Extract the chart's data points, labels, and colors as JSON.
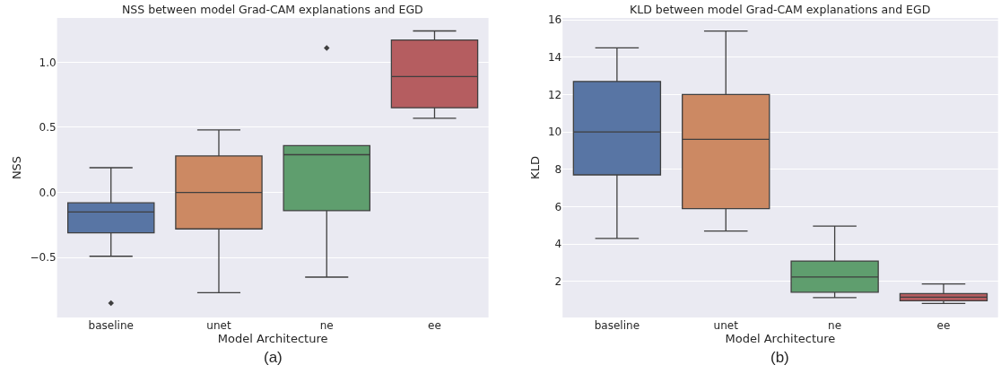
{
  "chart_data": [
    {
      "type": "box",
      "title": "NSS between model Grad-CAM explanations and EGD",
      "xlabel": "Model Architecture",
      "ylabel": "NSS",
      "categories": [
        "baseline",
        "unet",
        "ne",
        "ee"
      ],
      "colors": [
        "#5875a4",
        "#cc8963",
        "#5f9e6e",
        "#b55d60"
      ],
      "ylim": [
        -0.96,
        1.34
      ],
      "yticks": [
        {
          "value": -0.5,
          "label": "−0.5"
        },
        {
          "value": 0,
          "label": "0.0"
        },
        0.5,
        {
          "value": 1,
          "label": "1.0"
        }
      ],
      "grid": "y",
      "annotations": [
        "(a)"
      ],
      "boxes": [
        {
          "low": -0.49,
          "q1": -0.31,
          "median": -0.15,
          "q3": -0.08,
          "high": 0.19,
          "outliers": [
            -0.85
          ]
        },
        {
          "low": -0.77,
          "q1": -0.28,
          "median": 0.0,
          "q3": 0.28,
          "high": 0.48
        },
        {
          "low": -0.65,
          "q1": -0.14,
          "median": 0.29,
          "q3": 0.36,
          "high": 0.36,
          "outliers": [
            1.11
          ]
        },
        {
          "low": 0.57,
          "q1": 0.65,
          "median": 0.89,
          "q3": 1.17,
          "high": 1.24
        }
      ]
    },
    {
      "type": "box",
      "title": "KLD between model Grad-CAM explanations and EGD",
      "xlabel": "Model Architecture",
      "ylabel": "KLD",
      "categories": [
        "baseline",
        "unet",
        "ne",
        "ee"
      ],
      "colors": [
        "#5875a4",
        "#cc8963",
        "#5f9e6e",
        "#b55d60"
      ],
      "ylim": [
        0.07,
        16.1
      ],
      "yticks": [
        2,
        4,
        6,
        8,
        10,
        12,
        14,
        16
      ],
      "grid": "y",
      "annotations": [
        "(b)"
      ],
      "boxes": [
        {
          "low": 4.3,
          "q1": 7.7,
          "median": 10.0,
          "q3": 12.7,
          "high": 14.5
        },
        {
          "low": 4.7,
          "q1": 5.9,
          "median": 9.6,
          "q3": 12.0,
          "high": 15.4
        },
        {
          "low": 1.13,
          "q1": 1.42,
          "median": 2.24,
          "q3": 3.09,
          "high": 4.96
        },
        {
          "low": 0.82,
          "q1": 0.96,
          "median": 1.16,
          "q3": 1.35,
          "high": 1.86
        }
      ]
    }
  ]
}
